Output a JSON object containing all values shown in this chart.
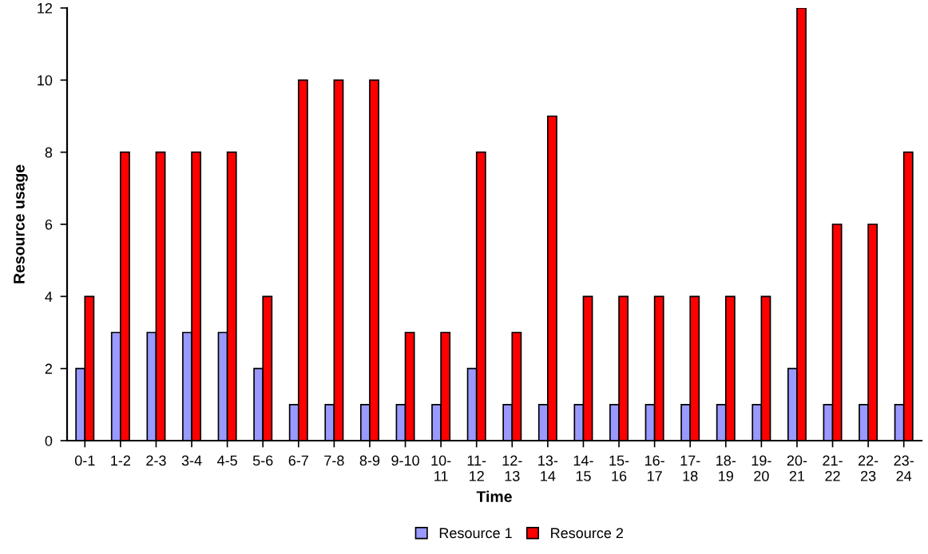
{
  "chart_data": {
    "type": "bar",
    "xlabel": "Time",
    "ylabel": "Resource usage",
    "categories": [
      "0-1",
      "1-2",
      "2-3",
      "3-4",
      "4-5",
      "5-6",
      "6-7",
      "7-8",
      "8-9",
      "9-10",
      "10-\n11",
      "11-\n12",
      "12-\n13",
      "13-\n14",
      "14-\n15",
      "15-\n16",
      "16-\n17",
      "17-\n18",
      "18-\n19",
      "19-\n20",
      "20-\n21",
      "21-\n22",
      "22-\n23",
      "23-\n24"
    ],
    "series": [
      {
        "name": "Resource 1",
        "color": "#9999ff",
        "values": [
          2,
          3,
          3,
          3,
          3,
          2,
          1,
          1,
          1,
          1,
          1,
          2,
          1,
          1,
          1,
          1,
          1,
          1,
          1,
          1,
          2,
          1,
          1,
          1
        ]
      },
      {
        "name": "Resource 2",
        "color": "#ff0000",
        "values": [
          4,
          8,
          8,
          8,
          8,
          4,
          10,
          10,
          10,
          3,
          3,
          8,
          3,
          9,
          4,
          4,
          4,
          4,
          4,
          4,
          12,
          6,
          6,
          8
        ]
      }
    ],
    "ylim": [
      0,
      12
    ],
    "yticks": [
      0,
      2,
      4,
      6,
      8,
      10,
      12
    ],
    "grid": false,
    "legend": "bottom"
  }
}
